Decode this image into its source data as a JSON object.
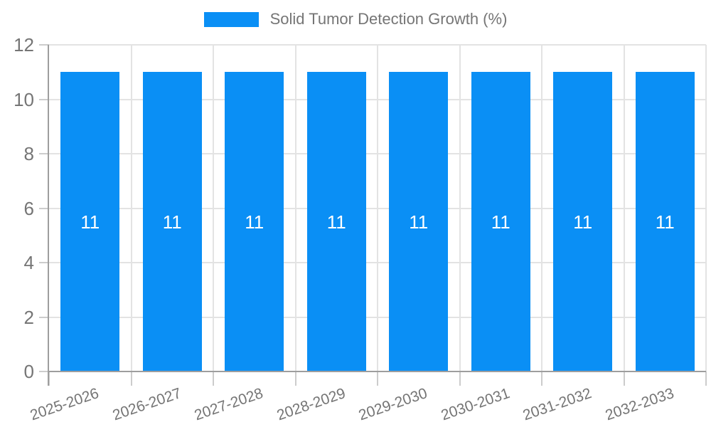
{
  "legend": {
    "label": "Solid Tumor Detection Growth (%)"
  },
  "chart_data": {
    "type": "bar",
    "title": "Solid Tumor Detection Growth (%)",
    "categories": [
      "2025-2026",
      "2026-2027",
      "2027-2028",
      "2028-2029",
      "2029-2030",
      "2030-2031",
      "2031-2032",
      "2032-2033"
    ],
    "series": [
      {
        "name": "Solid Tumor Detection Growth (%)",
        "values": [
          11,
          11,
          11,
          11,
          11,
          11,
          11,
          11
        ]
      }
    ],
    "bar_labels": [
      "11",
      "11",
      "11",
      "11",
      "11",
      "11",
      "11",
      "11"
    ],
    "xlabel": "",
    "ylabel": "",
    "ylim": [
      0,
      12
    ],
    "yticks": [
      0,
      2,
      4,
      6,
      8,
      10,
      12
    ],
    "grid": true,
    "legend_position": "top",
    "colors": {
      "bar": "#0a8ff5",
      "bar_label_text": "#ffffff",
      "axis_text": "#757575",
      "gridline": "#e3e3e3",
      "axis_line": "#9e9e9e",
      "tick": "#cccccc",
      "background": "#ffffff"
    }
  }
}
